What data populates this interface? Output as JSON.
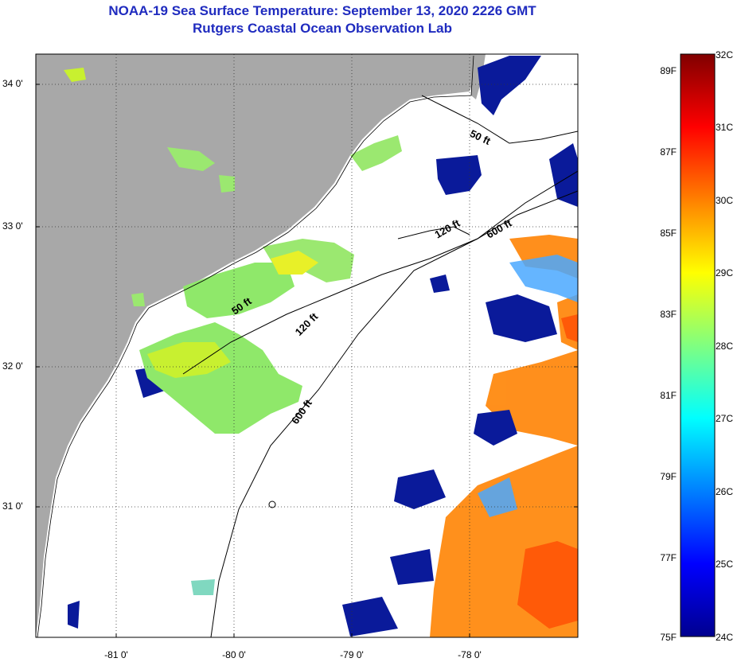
{
  "title": {
    "line1": "NOAA-19 Sea Surface Temperature:  September 13, 2020 2226 GMT",
    "line2": "Rutgers Coastal Ocean Observation Lab"
  },
  "axes": {
    "latitude_ticks": [
      "34 0'",
      "33 0'",
      "32 0'",
      "31 0'"
    ],
    "longitude_ticks": [
      "-81 0'",
      "-80 0'",
      "-79 0'",
      "-78 0'"
    ]
  },
  "isobaths": [
    "50 ft",
    "120 ft",
    "600 ft"
  ],
  "colorbar": {
    "fahrenheit": [
      "89F",
      "87F",
      "85F",
      "83F",
      "81F",
      "79F",
      "77F",
      "75F"
    ],
    "celsius": [
      "32C",
      "31C",
      "30C",
      "29C",
      "28C",
      "27C",
      "26C",
      "25C",
      "24C"
    ],
    "range_c": [
      24,
      32
    ],
    "colors": [
      "#00008f",
      "#0000ff",
      "#0080ff",
      "#00ffff",
      "#80ff80",
      "#ffff00",
      "#ff8000",
      "#ff0000",
      "#800000"
    ]
  },
  "colors": {
    "land": "#a8a8a8",
    "cloud": "#ffffff",
    "title": "#1f2bbf",
    "cool_water": "#0a1a9a",
    "shelf_water": "#9be870",
    "warm_water": "#ff8a10"
  }
}
